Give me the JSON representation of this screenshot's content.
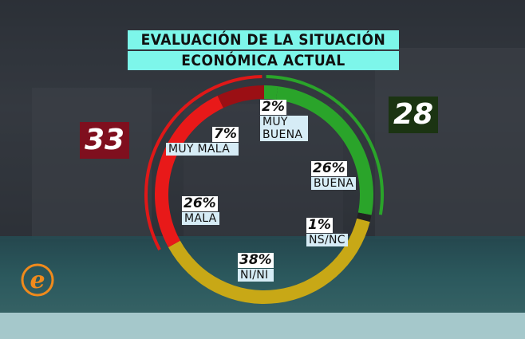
{
  "chart_data": {
    "type": "pie",
    "title_lines": [
      "EVALUACIÓN DE LA SITUACIÓN",
      "ECONÓMICA ACTUAL"
    ],
    "slices": [
      {
        "label": "MUY BUENA",
        "value": 2,
        "value_label": "2%",
        "color": "#2aa42a"
      },
      {
        "label": "BUENA",
        "value": 26,
        "value_label": "26%",
        "color": "#2aa42a"
      },
      {
        "label": "NS/NC",
        "value": 1,
        "value_label": "1%",
        "color": "#222222"
      },
      {
        "label": "NI/NI",
        "value": 38,
        "value_label": "38%",
        "color": "#c8a816"
      },
      {
        "label": "MALA",
        "value": 26,
        "value_label": "26%",
        "color": "#e81919"
      },
      {
        "label": "MUY MALA",
        "value": 7,
        "value_label": "7%",
        "color": "#9b0f14"
      }
    ],
    "totals": {
      "negative": {
        "value": "33",
        "color": "#7f0f1e",
        "arc_color": "#e01818"
      },
      "positive": {
        "value": "28",
        "color": "#1b3412",
        "arc_color": "#2aa42a"
      }
    }
  },
  "logo": {
    "letter": "e",
    "color": "#f08a1c"
  }
}
